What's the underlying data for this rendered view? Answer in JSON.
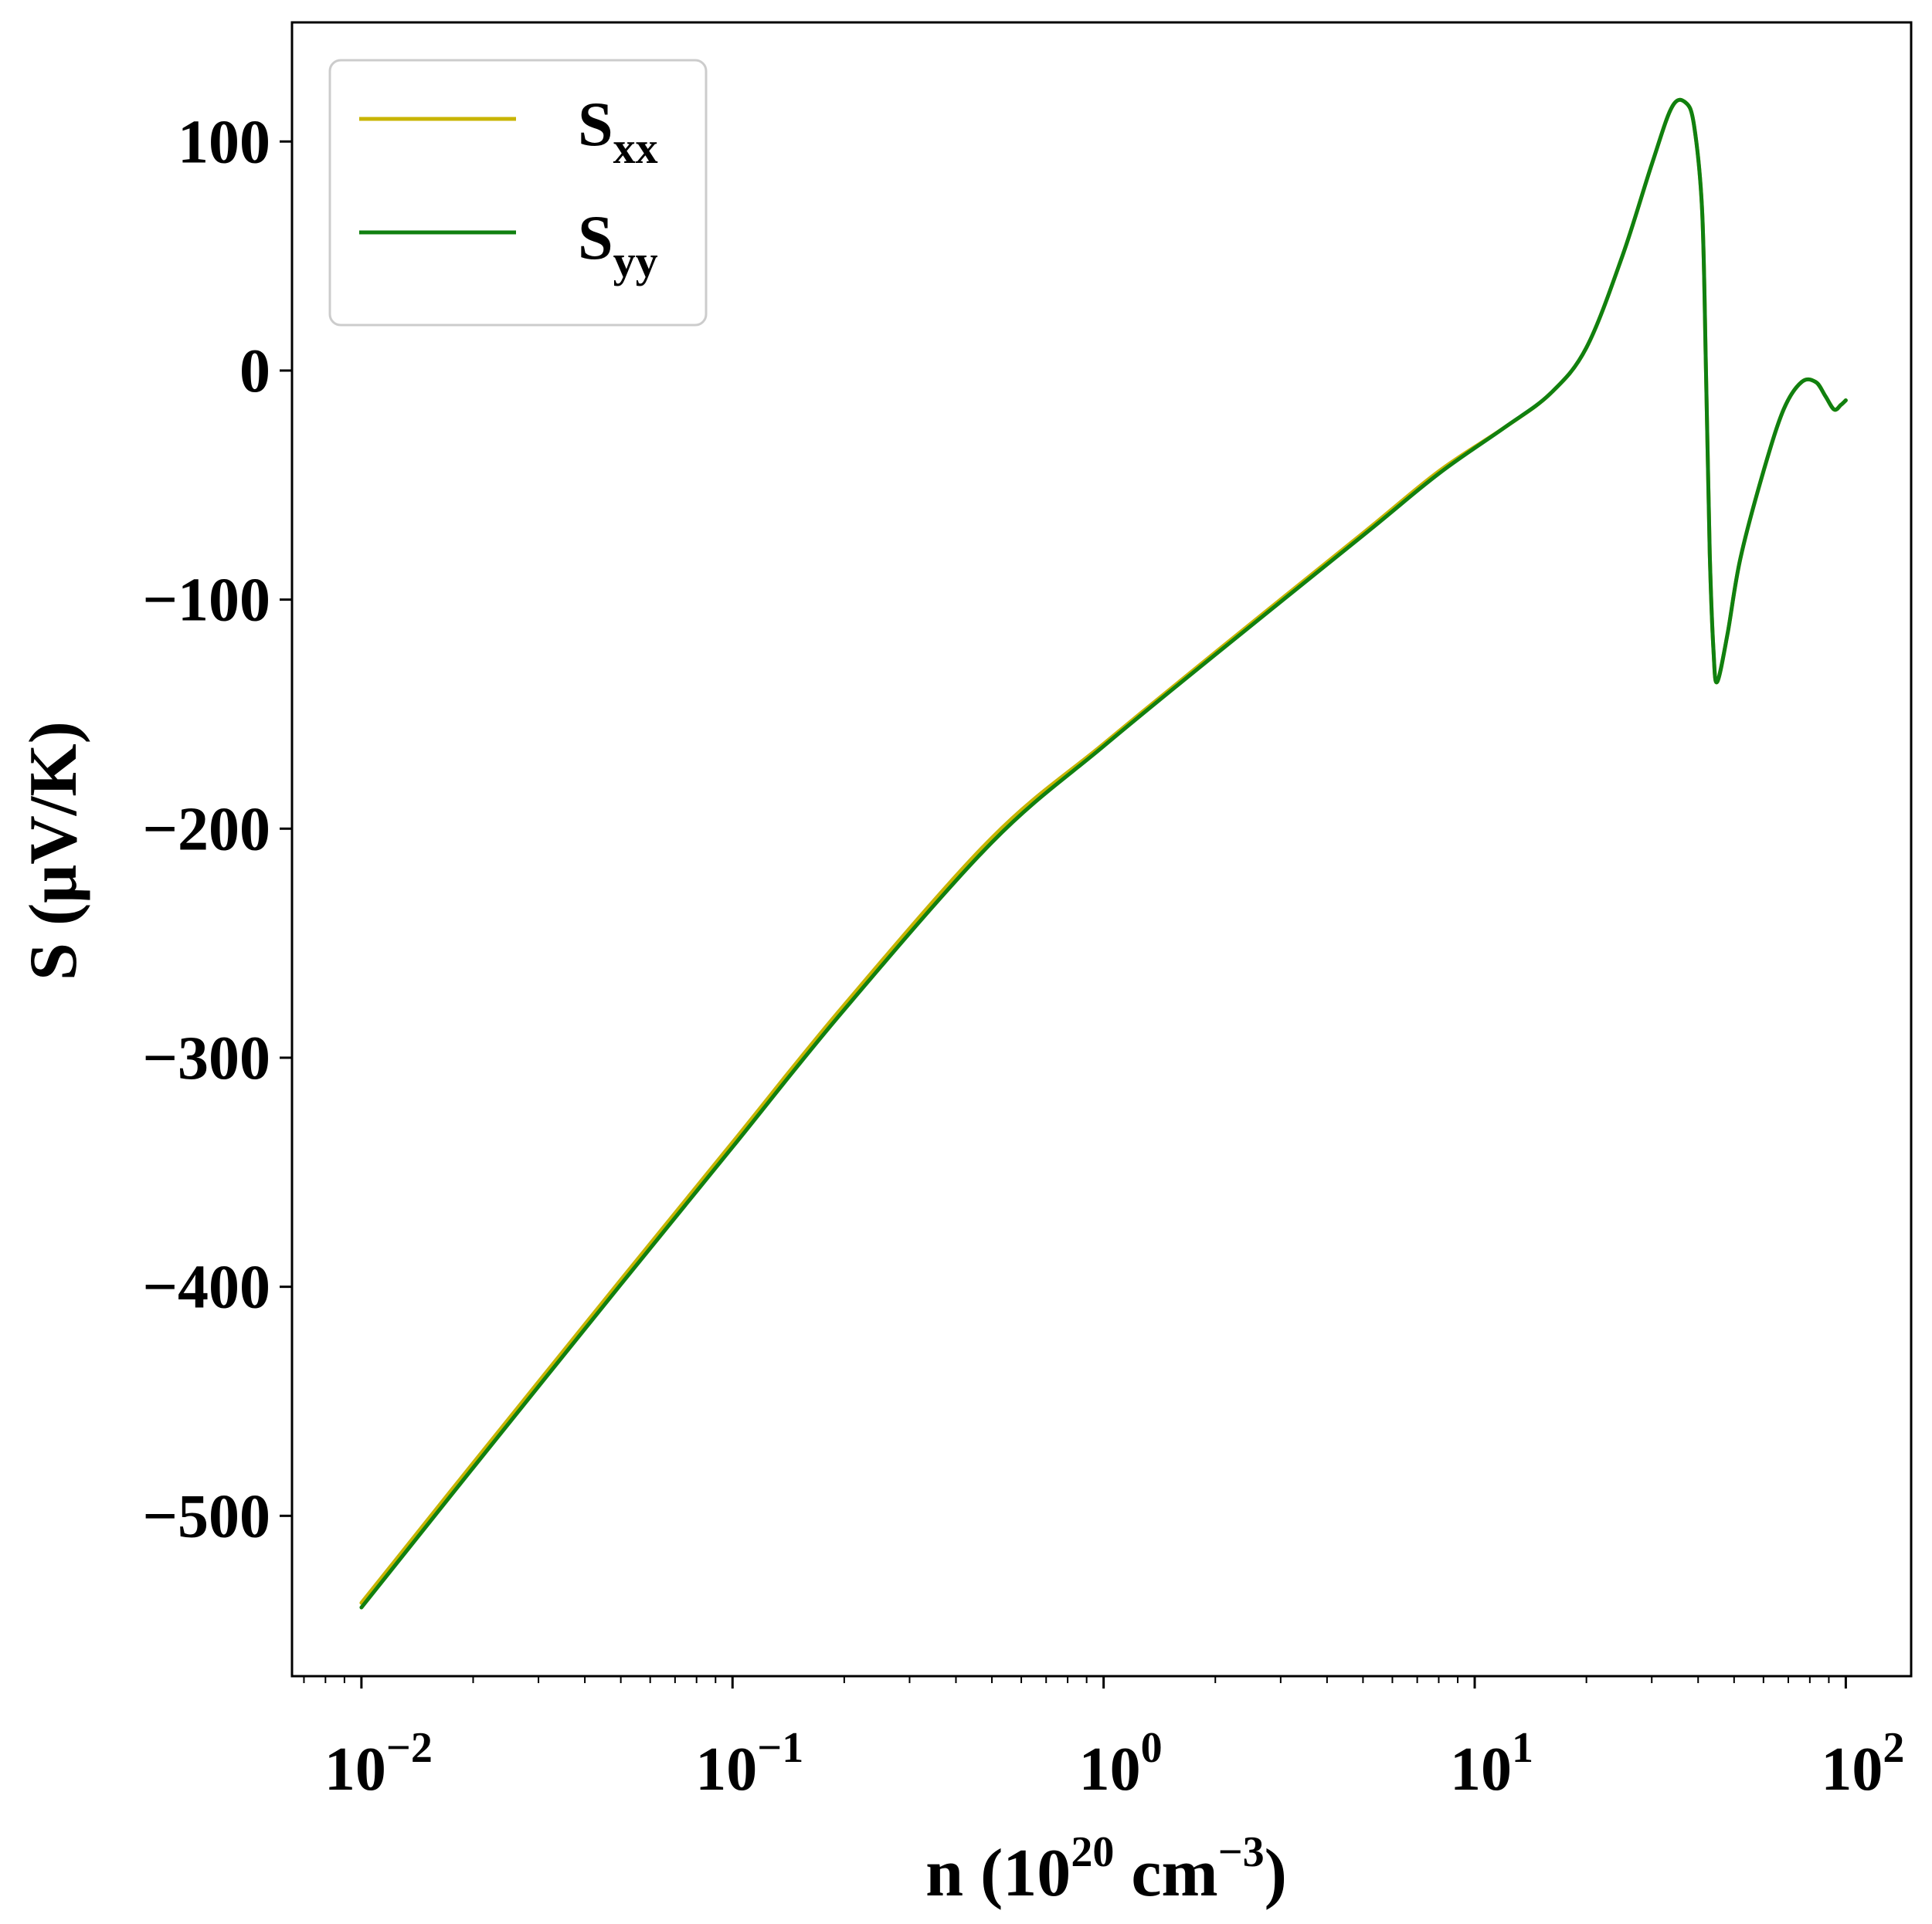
{
  "chart_data": {
    "type": "line",
    "xlabel": {
      "base": "n (10",
      "sup1": "20",
      "mid": " cm",
      "sup2": "−3",
      "end": ")"
    },
    "ylabel": "S (μV/K)",
    "xscale": "log",
    "xlim": [
      0.0065,
      150
    ],
    "ylim": [
      -570,
      152
    ],
    "grid": false,
    "legend_position": "top-left",
    "x_ticks": [
      {
        "value": 0.01,
        "base": "10",
        "exp": "−2"
      },
      {
        "value": 0.1,
        "base": "10",
        "exp": "−1"
      },
      {
        "value": 1,
        "base": "10",
        "exp": "0"
      },
      {
        "value": 10,
        "base": "10",
        "exp": "1"
      },
      {
        "value": 100,
        "base": "10",
        "exp": "2"
      }
    ],
    "y_ticks": [
      {
        "value": 100,
        "label": "100"
      },
      {
        "value": 0,
        "label": "0"
      },
      {
        "value": -100,
        "label": "−100"
      },
      {
        "value": -200,
        "label": "−200"
      },
      {
        "value": -300,
        "label": "−300"
      },
      {
        "value": -400,
        "label": "−400"
      },
      {
        "value": -500,
        "label": "−500"
      }
    ],
    "x": [
      0.01,
      0.02,
      0.05,
      0.1,
      0.2,
      0.5,
      1,
      2,
      5,
      8,
      12,
      16,
      20,
      25,
      30,
      34,
      37,
      39,
      41,
      42,
      43,
      44,
      45,
      48,
      52,
      60,
      68,
      76,
      83,
      88,
      93,
      97,
      100
    ],
    "series": [
      {
        "name": {
          "base": "S",
          "sub": "xx"
        },
        "color": "#c8b400",
        "y": [
          -538,
          -477,
          -397,
          -337,
          -277,
          -204,
          -163,
          -123,
          -71,
          -44,
          -25,
          -10,
          10,
          50,
          90,
          115,
          117,
          107,
          70,
          0,
          -80,
          -122,
          -136,
          -115,
          -82,
          -44,
          -17,
          -5,
          -5,
          -11,
          -17,
          -15,
          -13
        ]
      },
      {
        "name": {
          "base": "S",
          "sub": "yy"
        },
        "color": "#108010",
        "y": [
          -540,
          -479,
          -399,
          -339,
          -279,
          -206,
          -164,
          -124,
          -72,
          -45,
          -25,
          -10,
          10,
          50,
          90,
          115,
          117,
          107,
          70,
          0,
          -80,
          -122,
          -136,
          -115,
          -82,
          -44,
          -17,
          -5,
          -5,
          -11,
          -17,
          -15,
          -13
        ]
      }
    ]
  }
}
